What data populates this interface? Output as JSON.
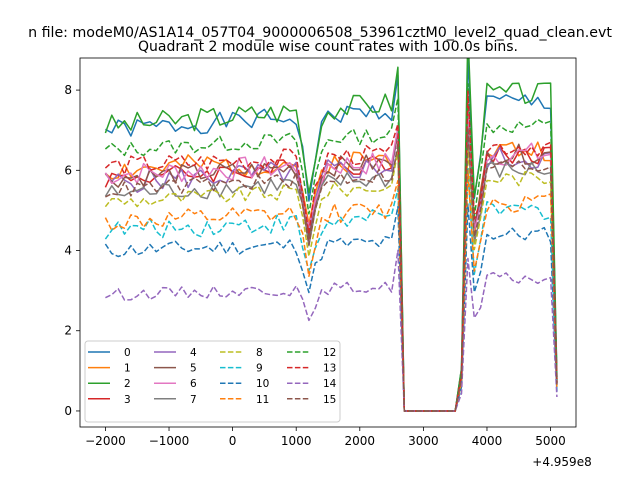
{
  "chart_data": {
    "type": "line",
    "suptitle": "n file: modeM0/AS1A14_057T04_9000006508_53961cztM0_level2_quad_clean.evt",
    "title": "Quadrant 2 module wise count rates with 100.0s bins.",
    "xlabel": "",
    "ylabel": "",
    "offset_text": "+4.959e8",
    "xlim": [
      -2400,
      5400
    ],
    "ylim": [
      -0.4,
      8.8
    ],
    "xticks": [
      -2000,
      -1000,
      0,
      1000,
      2000,
      3000,
      4000,
      5000
    ],
    "xtick_labels": [
      "−2000",
      "−1000",
      "0",
      "1000",
      "2000",
      "3000",
      "4000",
      "5000"
    ],
    "yticks": [
      0,
      2,
      4,
      6,
      8
    ],
    "ytick_labels": [
      "0",
      "2",
      "4",
      "6",
      "8"
    ],
    "legend_location": "lower-left",
    "legend_columns": 4,
    "time_range": [
      -2000,
      5100
    ],
    "bin_width": 100,
    "gap_interval": [
      2650,
      3500
    ],
    "shared_dips": [
      {
        "t": 1100,
        "factor": 0.88
      },
      {
        "t": 1200,
        "factor": 0.72
      },
      {
        "t": 1300,
        "factor": 0.86
      },
      {
        "t": 1400,
        "factor": 0.95
      },
      {
        "t": 3700,
        "factor": 1.2
      },
      {
        "t": 3800,
        "factor": 0.72
      },
      {
        "t": 3900,
        "factor": 0.85
      }
    ],
    "series": [
      {
        "name": "0",
        "color": "#1f77b4",
        "dash": "solid",
        "level": 7.0,
        "rise": 0.5,
        "jitter": 0.25,
        "seed": 1
      },
      {
        "name": "1",
        "color": "#ff7f0e",
        "dash": "solid",
        "level": 6.0,
        "rise": 0.3,
        "jitter": 0.3,
        "seed": 2
      },
      {
        "name": "2",
        "color": "#2ca02c",
        "dash": "solid",
        "level": 7.1,
        "rise": 0.6,
        "jitter": 0.3,
        "seed": 3
      },
      {
        "name": "3",
        "color": "#d62728",
        "dash": "solid",
        "level": 5.8,
        "rise": 0.4,
        "jitter": 0.25,
        "seed": 4
      },
      {
        "name": "4",
        "color": "#9467bd",
        "dash": "solid",
        "level": 5.7,
        "rise": 0.4,
        "jitter": 0.3,
        "seed": 5
      },
      {
        "name": "5",
        "color": "#8c564b",
        "dash": "solid",
        "level": 5.8,
        "rise": 0.4,
        "jitter": 0.25,
        "seed": 6
      },
      {
        "name": "6",
        "color": "#e377c2",
        "dash": "solid",
        "level": 5.9,
        "rise": 0.3,
        "jitter": 0.3,
        "seed": 7
      },
      {
        "name": "7",
        "color": "#7f7f7f",
        "dash": "solid",
        "level": 5.4,
        "rise": 0.4,
        "jitter": 0.25,
        "seed": 8
      },
      {
        "name": "8",
        "color": "#bcbd22",
        "dash": "dashed",
        "level": 5.2,
        "rise": 0.4,
        "jitter": 0.2,
        "seed": 9
      },
      {
        "name": "9",
        "color": "#17becf",
        "dash": "dashed",
        "level": 4.5,
        "rise": 0.3,
        "jitter": 0.25,
        "seed": 10
      },
      {
        "name": "10",
        "color": "#1f77b4",
        "dash": "dashed",
        "level": 4.0,
        "rise": 0.2,
        "jitter": 0.2,
        "seed": 11
      },
      {
        "name": "11",
        "color": "#ff7f0e",
        "dash": "dashed",
        "level": 4.7,
        "rise": 0.3,
        "jitter": 0.25,
        "seed": 12
      },
      {
        "name": "12",
        "color": "#2ca02c",
        "dash": "dashed",
        "level": 6.5,
        "rise": 0.4,
        "jitter": 0.2,
        "seed": 13
      },
      {
        "name": "13",
        "color": "#d62728",
        "dash": "dashed",
        "level": 6.1,
        "rise": 0.3,
        "jitter": 0.25,
        "seed": 14
      },
      {
        "name": "14",
        "color": "#9467bd",
        "dash": "dashed",
        "level": 2.9,
        "rise": 0.2,
        "jitter": 0.15,
        "seed": 15
      },
      {
        "name": "15",
        "color": "#8c564b",
        "dash": "dashed",
        "level": 5.5,
        "rise": 0.4,
        "jitter": 0.2,
        "seed": 16
      }
    ]
  }
}
